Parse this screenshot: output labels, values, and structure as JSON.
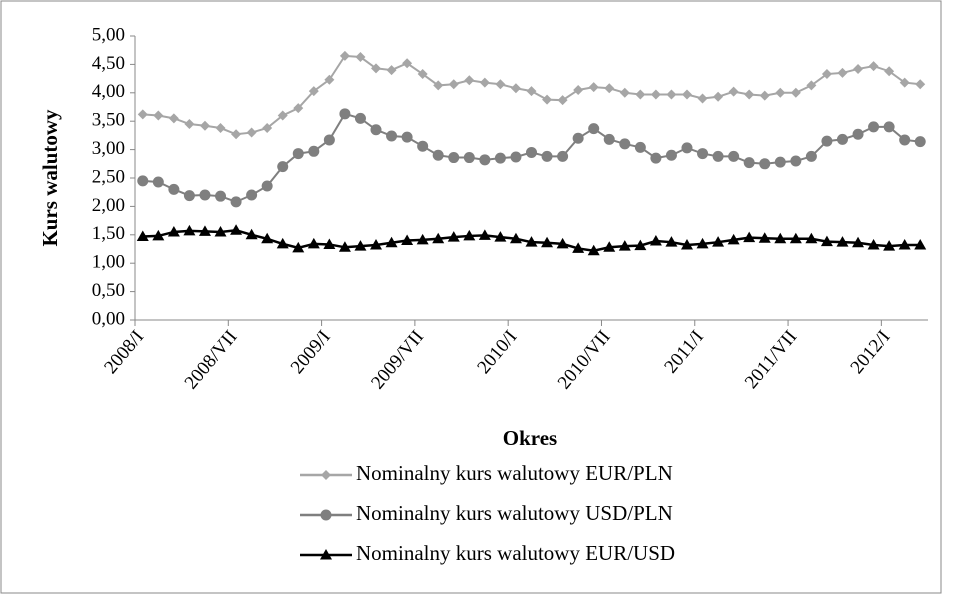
{
  "chart_data": {
    "type": "line",
    "x_label": "Okres",
    "y_label": "Kurs walutowy",
    "categories": [
      "2008/I",
      null,
      null,
      null,
      null,
      null,
      "2008/VII",
      null,
      null,
      null,
      null,
      null,
      "2009/I",
      null,
      null,
      null,
      null,
      null,
      "2009/VII",
      null,
      null,
      null,
      null,
      null,
      "2010/I",
      null,
      null,
      null,
      null,
      null,
      "2010/VII",
      null,
      null,
      null,
      null,
      null,
      "2011/I",
      null,
      null,
      null,
      null,
      null,
      "2011/VII",
      null,
      null,
      null,
      null,
      null,
      "2012/I",
      null,
      null
    ],
    "series": [
      {
        "name": "Nominalny kurs walutowy EUR/PLN",
        "color": "#a6a6a6",
        "marker": "diamond",
        "values": [
          3.62,
          3.6,
          3.55,
          3.45,
          3.42,
          3.38,
          3.27,
          3.3,
          3.38,
          3.6,
          3.73,
          4.03,
          4.23,
          4.65,
          4.63,
          4.43,
          4.4,
          4.52,
          4.33,
          4.13,
          4.15,
          4.22,
          4.18,
          4.15,
          4.08,
          4.03,
          3.88,
          3.87,
          4.05,
          4.1,
          4.08,
          4.0,
          3.97,
          3.97,
          3.97,
          3.97,
          3.9,
          3.93,
          4.02,
          3.97,
          3.95,
          4.0,
          4.0,
          4.13,
          4.33,
          4.35,
          4.42,
          4.47,
          4.38,
          4.18,
          4.15
        ]
      },
      {
        "name": "Nominalny kurs walutowy USD/PLN",
        "color": "#7f7f7f",
        "marker": "circle",
        "values": [
          2.45,
          2.43,
          2.3,
          2.19,
          2.2,
          2.18,
          2.08,
          2.2,
          2.36,
          2.7,
          2.93,
          2.97,
          3.17,
          3.63,
          3.55,
          3.35,
          3.24,
          3.22,
          3.06,
          2.9,
          2.86,
          2.86,
          2.82,
          2.85,
          2.87,
          2.95,
          2.88,
          2.88,
          3.2,
          3.37,
          3.18,
          3.1,
          3.04,
          2.85,
          2.9,
          3.03,
          2.93,
          2.88,
          2.88,
          2.77,
          2.75,
          2.78,
          2.8,
          2.88,
          3.15,
          3.18,
          3.27,
          3.4,
          3.4,
          3.17,
          3.14
        ]
      },
      {
        "name": "Nominalny kurs walutowy EUR/USD",
        "color": "#000000",
        "marker": "triangle",
        "values": [
          1.47,
          1.48,
          1.55,
          1.57,
          1.56,
          1.55,
          1.58,
          1.5,
          1.43,
          1.34,
          1.27,
          1.34,
          1.33,
          1.28,
          1.3,
          1.32,
          1.36,
          1.4,
          1.41,
          1.43,
          1.46,
          1.48,
          1.49,
          1.46,
          1.43,
          1.37,
          1.36,
          1.34,
          1.26,
          1.22,
          1.28,
          1.3,
          1.31,
          1.39,
          1.37,
          1.32,
          1.34,
          1.37,
          1.41,
          1.45,
          1.44,
          1.43,
          1.43,
          1.43,
          1.38,
          1.37,
          1.36,
          1.32,
          1.3,
          1.32,
          1.32
        ]
      }
    ],
    "ylim": [
      0,
      5
    ],
    "yticks": [
      {
        "value": 0,
        "label": "0,00"
      },
      {
        "value": 0.5,
        "label": "0,50"
      },
      {
        "value": 1,
        "label": "1,00"
      },
      {
        "value": 1.5,
        "label": "1,50"
      },
      {
        "value": 2,
        "label": "2,00"
      },
      {
        "value": 2.5,
        "label": "2,50"
      },
      {
        "value": 3,
        "label": "3,00"
      },
      {
        "value": 3.5,
        "label": "3,50"
      },
      {
        "value": 4,
        "label": "4,00"
      },
      {
        "value": 4.5,
        "label": "4,50"
      },
      {
        "value": 5,
        "label": "5,00"
      }
    ],
    "grid": false,
    "legend": "bottom"
  }
}
